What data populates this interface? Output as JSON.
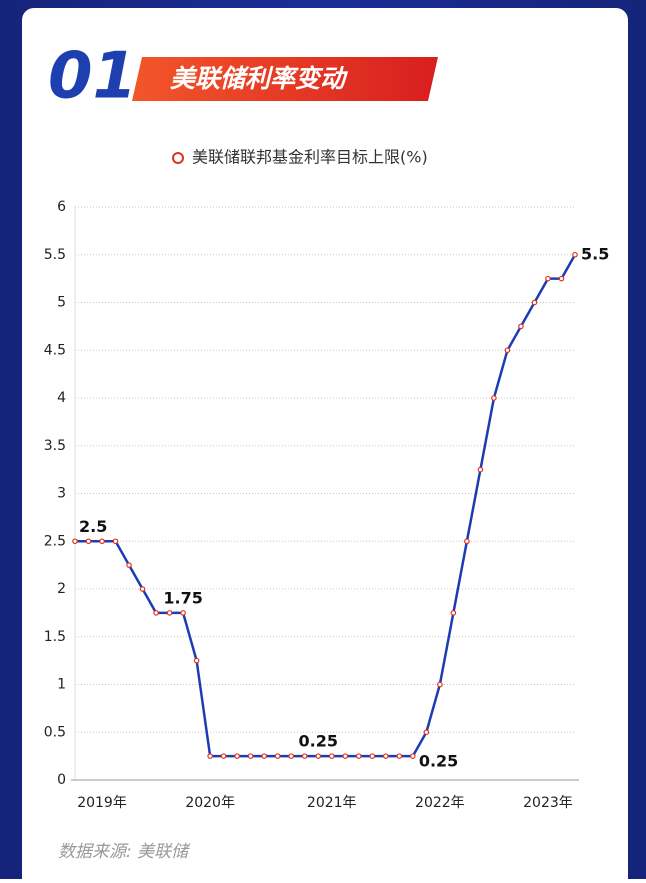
{
  "header": {
    "number": "01",
    "title": "美联储利率变动"
  },
  "chart_data": {
    "type": "line",
    "categories": [
      null,
      null,
      "2019年",
      null,
      null,
      null,
      null,
      null,
      null,
      null,
      "2020年",
      null,
      null,
      null,
      null,
      null,
      null,
      null,
      null,
      "2021年",
      null,
      null,
      null,
      null,
      null,
      null,
      null,
      "2022年",
      null,
      null,
      null,
      null,
      null,
      null,
      null,
      "2023年",
      null,
      null
    ],
    "series": [
      {
        "name": "美联储联邦基金利率目标上限(%)",
        "color": "#1d3cb4",
        "marker_color": "#e0321e",
        "values": [
          2.5,
          2.5,
          2.5,
          2.5,
          2.25,
          2.0,
          1.75,
          1.75,
          1.75,
          1.25,
          0.25,
          0.25,
          0.25,
          0.25,
          0.25,
          0.25,
          0.25,
          0.25,
          0.25,
          0.25,
          0.25,
          0.25,
          0.25,
          0.25,
          0.25,
          0.25,
          0.5,
          1.0,
          1.75,
          2.5,
          3.25,
          4.0,
          4.5,
          4.75,
          5.0,
          5.25,
          5.25,
          5.5
        ],
        "value_labels": [
          "2.5",
          null,
          null,
          null,
          null,
          null,
          null,
          null,
          "1.75",
          null,
          null,
          null,
          null,
          null,
          null,
          null,
          null,
          null,
          "0.25",
          null,
          null,
          null,
          null,
          null,
          null,
          "0.25",
          null,
          null,
          null,
          null,
          null,
          null,
          null,
          null,
          null,
          null,
          null,
          "5.5"
        ]
      }
    ],
    "ylim": [
      0,
      6
    ],
    "yticks": [
      0,
      0.5,
      1,
      1.5,
      2,
      2.5,
      3,
      3.5,
      4,
      4.5,
      5,
      5.5,
      6
    ],
    "grid": true,
    "legend": "top"
  },
  "source": "数据来源: 美联储"
}
